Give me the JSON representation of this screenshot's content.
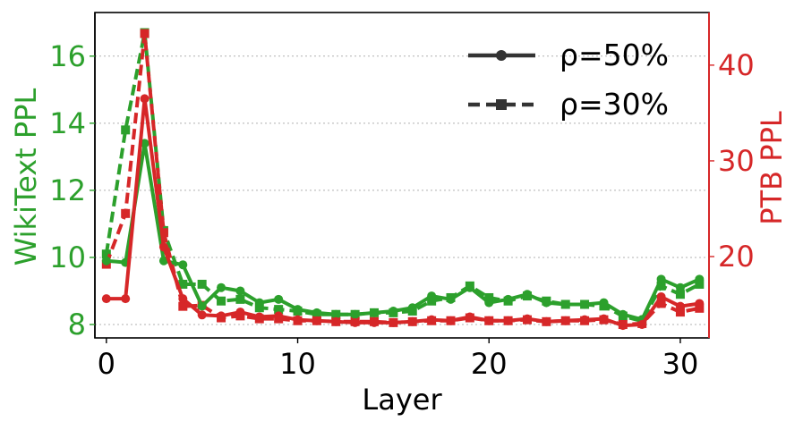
{
  "chart_data": {
    "type": "line",
    "xlabel": "Layer",
    "ylabel_left": "WikiText PPL",
    "ylabel_right": "PTB PPL",
    "xlim": [
      -0.6,
      31.5
    ],
    "ylim_left": [
      7.6,
      17.3
    ],
    "ylim_right": [
      11.5,
      45.5
    ],
    "xticks": [
      0,
      10,
      20,
      30
    ],
    "xtick_labels": [
      "0",
      "10",
      "20",
      "30"
    ],
    "yticks_left": [
      8,
      10,
      12,
      14,
      16
    ],
    "ytick_labels_left": [
      "8",
      "10",
      "12",
      "14",
      "16"
    ],
    "yticks_right": [
      20,
      30,
      40
    ],
    "ytick_labels_right": [
      "20",
      "30",
      "40"
    ],
    "grid": "horizontal dotted",
    "colors": {
      "wikitext": "#2ca02c",
      "ptb": "#d62728",
      "legend": "#333333"
    },
    "legend": {
      "position": "top-right",
      "entries": [
        {
          "label": "ρ=50%",
          "style": "solid",
          "marker": "circle"
        },
        {
          "label": "ρ=30%",
          "style": "dashed",
          "marker": "square"
        }
      ]
    },
    "x": [
      0,
      1,
      2,
      3,
      4,
      5,
      6,
      7,
      8,
      9,
      10,
      11,
      12,
      13,
      14,
      15,
      16,
      17,
      18,
      19,
      20,
      21,
      22,
      23,
      24,
      25,
      26,
      27,
      28,
      29,
      30,
      31
    ],
    "series": [
      {
        "metric": "WikiText",
        "axis": "left",
        "style": "solid",
        "marker": "circle",
        "values": [
          9.9,
          9.85,
          13.4,
          9.9,
          9.78,
          8.55,
          9.1,
          9.0,
          8.65,
          8.75,
          8.45,
          8.35,
          8.3,
          8.3,
          8.35,
          8.4,
          8.5,
          8.85,
          8.75,
          9.1,
          8.65,
          8.75,
          8.9,
          8.65,
          8.6,
          8.6,
          8.65,
          8.3,
          8.15,
          9.35,
          9.1,
          9.35
        ]
      },
      {
        "metric": "WikiText",
        "axis": "left",
        "style": "dashed",
        "marker": "square",
        "values": [
          10.1,
          13.8,
          16.7,
          10.8,
          9.2,
          9.2,
          8.7,
          8.75,
          8.5,
          8.45,
          8.4,
          8.3,
          8.3,
          8.3,
          8.35,
          8.35,
          8.4,
          8.7,
          8.8,
          9.15,
          8.8,
          8.7,
          8.85,
          8.7,
          8.6,
          8.6,
          8.55,
          8.25,
          8.1,
          9.15,
          8.9,
          9.2
        ]
      },
      {
        "metric": "PTB",
        "axis": "right",
        "style": "solid",
        "marker": "circle",
        "values": [
          15.6,
          15.6,
          36.5,
          21.0,
          15.6,
          13.9,
          13.8,
          14.2,
          13.7,
          13.8,
          13.4,
          13.3,
          13.2,
          13.1,
          13.1,
          13.1,
          13.2,
          13.4,
          13.3,
          13.7,
          13.3,
          13.3,
          13.5,
          13.2,
          13.3,
          13.4,
          13.5,
          12.8,
          12.9,
          15.8,
          14.8,
          15.1
        ]
      },
      {
        "metric": "PTB",
        "axis": "right",
        "style": "dashed",
        "marker": "square",
        "values": [
          19.2,
          24.5,
          43.3,
          22.5,
          14.8,
          14.9,
          13.6,
          13.8,
          13.5,
          13.5,
          13.3,
          13.3,
          13.2,
          13.2,
          13.2,
          13.1,
          13.2,
          13.3,
          13.3,
          13.6,
          13.3,
          13.3,
          13.4,
          13.2,
          13.3,
          13.3,
          13.4,
          12.9,
          13.0,
          15.1,
          14.2,
          14.6
        ]
      }
    ]
  }
}
